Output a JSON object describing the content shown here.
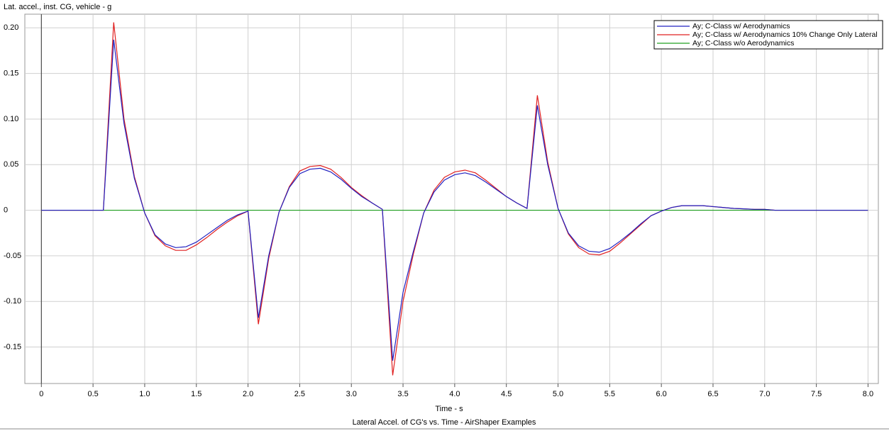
{
  "chart_data": {
    "type": "line",
    "title": "Lateral Accel. of CG's vs. Time - AirShaper Examples",
    "y_label": "Lat. accel., inst. CG, vehicle - g",
    "x_label": "Time - s",
    "grid": true,
    "legend": "top-right",
    "xlim": [
      -0.16,
      8.1
    ],
    "ylim": [
      -0.19,
      0.215
    ],
    "xticks": [
      0,
      0.5,
      {
        "value": 1,
        "label": "1.0"
      },
      1.5,
      {
        "value": 2,
        "label": "2.0"
      },
      2.5,
      {
        "value": 3,
        "label": "3.0"
      },
      3.5,
      {
        "value": 4,
        "label": "4.0"
      },
      4.5,
      {
        "value": 5,
        "label": "5.0"
      },
      5.5,
      {
        "value": 6,
        "label": "6.0"
      },
      6.5,
      {
        "value": 7,
        "label": "7.0"
      },
      7.5,
      {
        "value": 8,
        "label": "8.0"
      }
    ],
    "yticks": [
      {
        "value": 0.2,
        "label": "0.20"
      },
      0.15,
      {
        "value": 0.1,
        "label": "0.10"
      },
      0.05,
      0,
      -0.05,
      {
        "value": -0.1,
        "label": "-0.10"
      },
      -0.15
    ],
    "x": [
      0,
      0.1,
      0.2,
      0.3,
      0.4,
      0.5,
      0.6,
      0.7,
      0.8,
      0.9,
      1,
      1.1,
      1.2,
      1.3,
      1.4,
      1.5,
      1.6,
      1.7,
      1.8,
      1.9,
      2,
      2.1,
      2.2,
      2.3,
      2.4,
      2.5,
      2.6,
      2.7,
      2.8,
      2.9,
      3,
      3.1,
      3.2,
      3.3,
      3.4,
      3.5,
      3.6,
      3.7,
      3.8,
      3.9,
      4,
      4.1,
      4.2,
      4.3,
      4.4,
      4.5,
      4.6,
      4.7,
      4.8,
      4.9,
      5,
      5.1,
      5.2,
      5.3,
      5.4,
      5.5,
      5.6,
      5.7,
      5.8,
      5.9,
      6,
      6.1,
      6.2,
      6.3,
      6.4,
      6.5,
      6.6,
      6.7,
      6.8,
      6.9,
      7,
      7.1,
      7.2,
      7.3,
      7.4,
      7.5,
      7.6,
      7.7,
      7.8,
      7.9,
      8
    ],
    "series": [
      {
        "name": "Ay; C-Class w/ Aerodynamics",
        "color": "#2020c0",
        "values": [
          0,
          0,
          0,
          0,
          0,
          0,
          0,
          0.187,
          0.095,
          0.035,
          -0.003,
          -0.027,
          -0.037,
          -0.041,
          -0.04,
          -0.035,
          -0.027,
          -0.019,
          -0.011,
          -0.005,
          -0.001,
          -0.118,
          -0.05,
          -0.002,
          0.025,
          0.04,
          0.045,
          0.046,
          0.042,
          0.034,
          0.024,
          0.015,
          0.008,
          0.001,
          -0.165,
          -0.09,
          -0.045,
          -0.003,
          0.02,
          0.033,
          0.039,
          0.041,
          0.038,
          0.031,
          0.023,
          0.015,
          0.008,
          0.002,
          0.115,
          0.05,
          0.002,
          -0.025,
          -0.039,
          -0.045,
          -0.046,
          -0.042,
          -0.034,
          -0.025,
          -0.015,
          -0.006,
          -0.001,
          0.003,
          0.005,
          0.005,
          0.005,
          0.004,
          0.003,
          0.002,
          0.0015,
          0.001,
          0.001,
          0,
          0,
          0,
          0,
          0,
          0,
          0,
          0,
          0,
          0
        ]
      },
      {
        "name": "Ay; C-Class w/ Aerodynamics 10% Change Only Lateral",
        "color": "#e02020",
        "values": [
          0,
          0,
          0,
          0,
          0,
          0,
          0,
          0.206,
          0.1,
          0.037,
          -0.003,
          -0.028,
          -0.039,
          -0.044,
          -0.044,
          -0.038,
          -0.03,
          -0.021,
          -0.013,
          -0.006,
          -0.001,
          -0.125,
          -0.053,
          -0.002,
          0.026,
          0.043,
          0.048,
          0.049,
          0.045,
          0.036,
          0.025,
          0.016,
          0.008,
          0.001,
          -0.181,
          -0.1,
          -0.048,
          -0.003,
          0.022,
          0.036,
          0.042,
          0.044,
          0.041,
          0.033,
          0.024,
          0.015,
          0.008,
          0.002,
          0.126,
          0.053,
          0.002,
          -0.026,
          -0.041,
          -0.048,
          -0.049,
          -0.045,
          -0.036,
          -0.026,
          -0.016,
          -0.006,
          -0.001,
          0.003,
          0.005,
          0.005,
          0.005,
          0.004,
          0.003,
          0.002,
          0.0015,
          0.001,
          0.001,
          0,
          0,
          0,
          0,
          0,
          0,
          0,
          0,
          0,
          0
        ]
      },
      {
        "name": "Ay; C-Class w/o Aerodynamics",
        "color": "#20a020",
        "values": [
          0,
          0,
          0,
          0,
          0,
          0,
          0,
          0,
          0,
          0,
          0,
          0,
          0,
          0,
          0,
          0,
          0,
          0,
          0,
          0,
          0,
          0,
          0,
          0,
          0,
          0,
          0,
          0,
          0,
          0,
          0,
          0,
          0,
          0,
          0,
          0,
          0,
          0,
          0,
          0,
          0,
          0,
          0,
          0,
          0,
          0,
          0,
          0,
          0,
          0,
          0,
          0,
          0,
          0,
          0,
          0,
          0,
          0,
          0,
          0,
          0,
          0,
          0,
          0,
          0,
          0,
          0,
          0,
          0,
          0,
          0,
          0,
          0,
          0,
          0,
          0,
          0,
          0,
          0,
          0,
          0
        ]
      }
    ]
  }
}
